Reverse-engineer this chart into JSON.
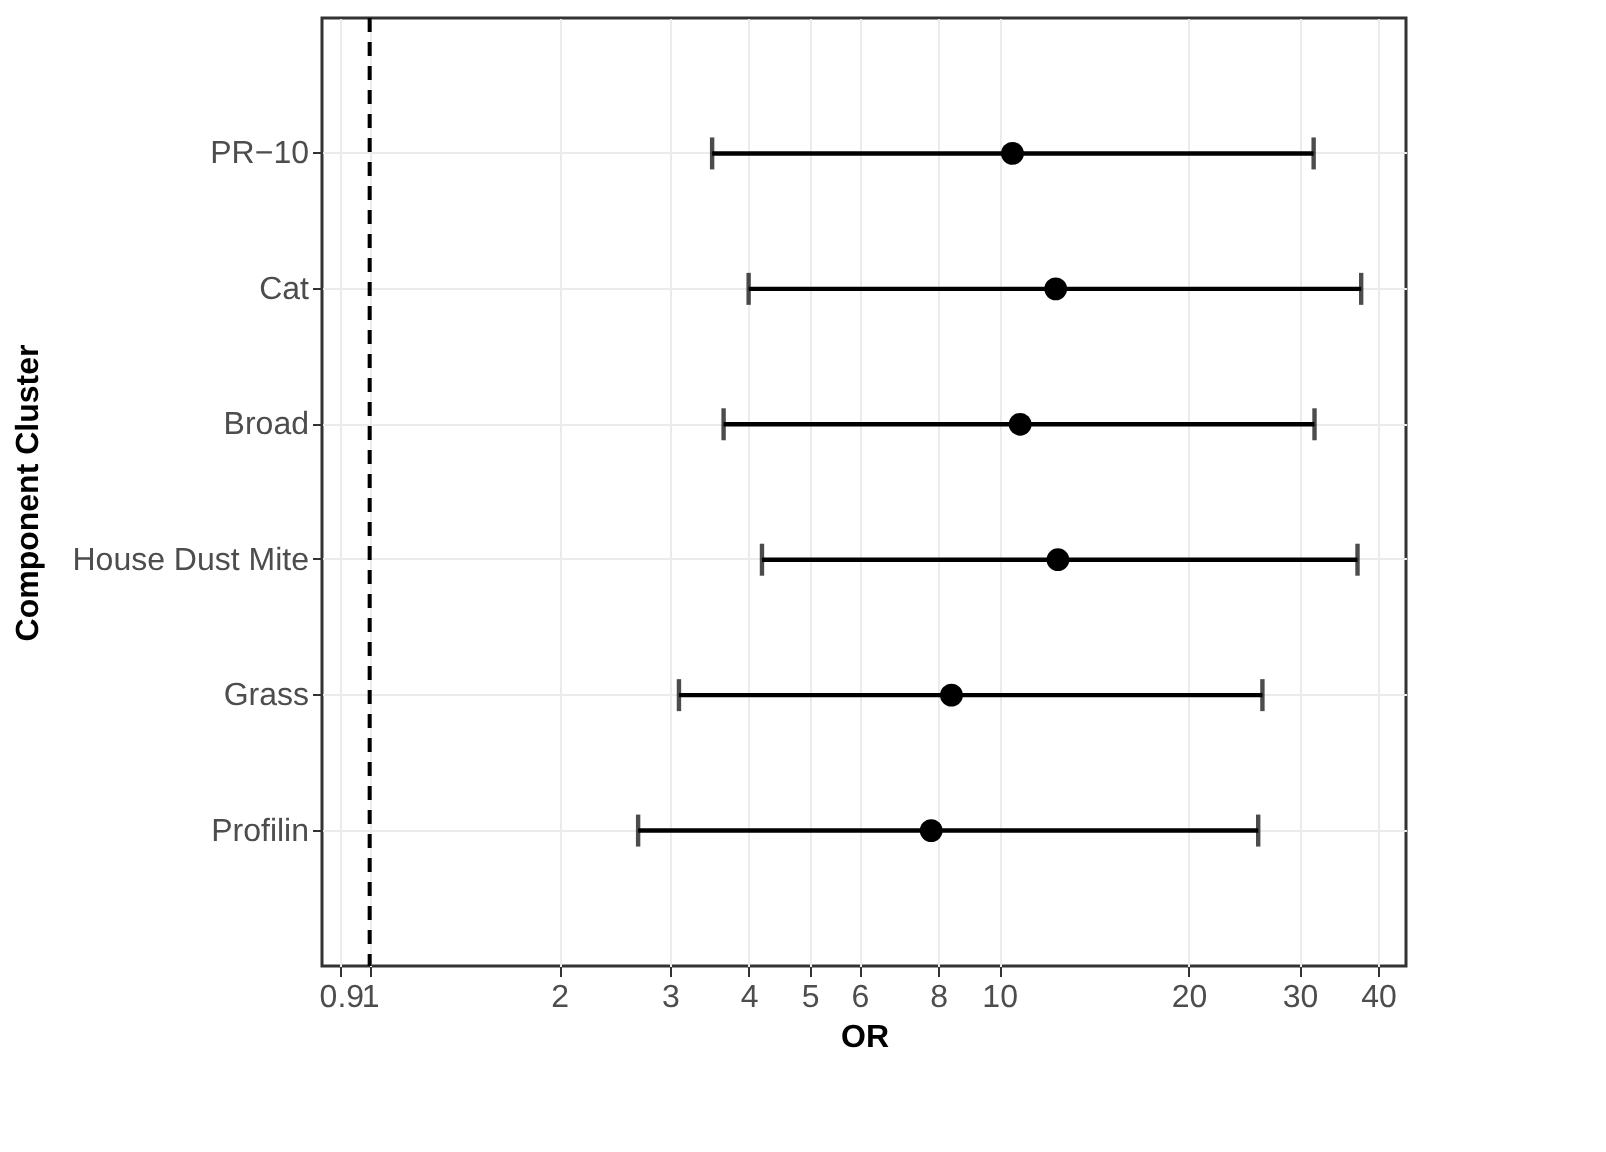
{
  "chart_data": {
    "type": "scatter",
    "xlabel": "OR",
    "ylabel": "Component Cluster",
    "categories": [
      "PR−10",
      "Cat",
      "Broad",
      "House Dust Mite",
      "Grass",
      "Profilin"
    ],
    "orientation": "horizontal",
    "values": [
      10.5,
      12.3,
      10.8,
      12.4,
      8.4,
      7.8
    ],
    "errors": [
      [
        3.5,
        31.6
      ],
      [
        4.0,
        37.6
      ],
      [
        3.65,
        31.7
      ],
      [
        4.2,
        37.1
      ],
      [
        3.1,
        26.2
      ],
      [
        2.67,
        25.8
      ]
    ],
    "color": "#000000",
    "marker": "circle",
    "log": "x",
    "xlim": [
      0.84,
      44.3
    ],
    "xticks": [
      0.9,
      1,
      2,
      3,
      4,
      5,
      6,
      8,
      10,
      20,
      30,
      40
    ],
    "ref_lines": [
      {
        "axis": "x",
        "value": 1,
        "line_style": "dashed",
        "color": "#000000"
      }
    ],
    "grid": true
  }
}
